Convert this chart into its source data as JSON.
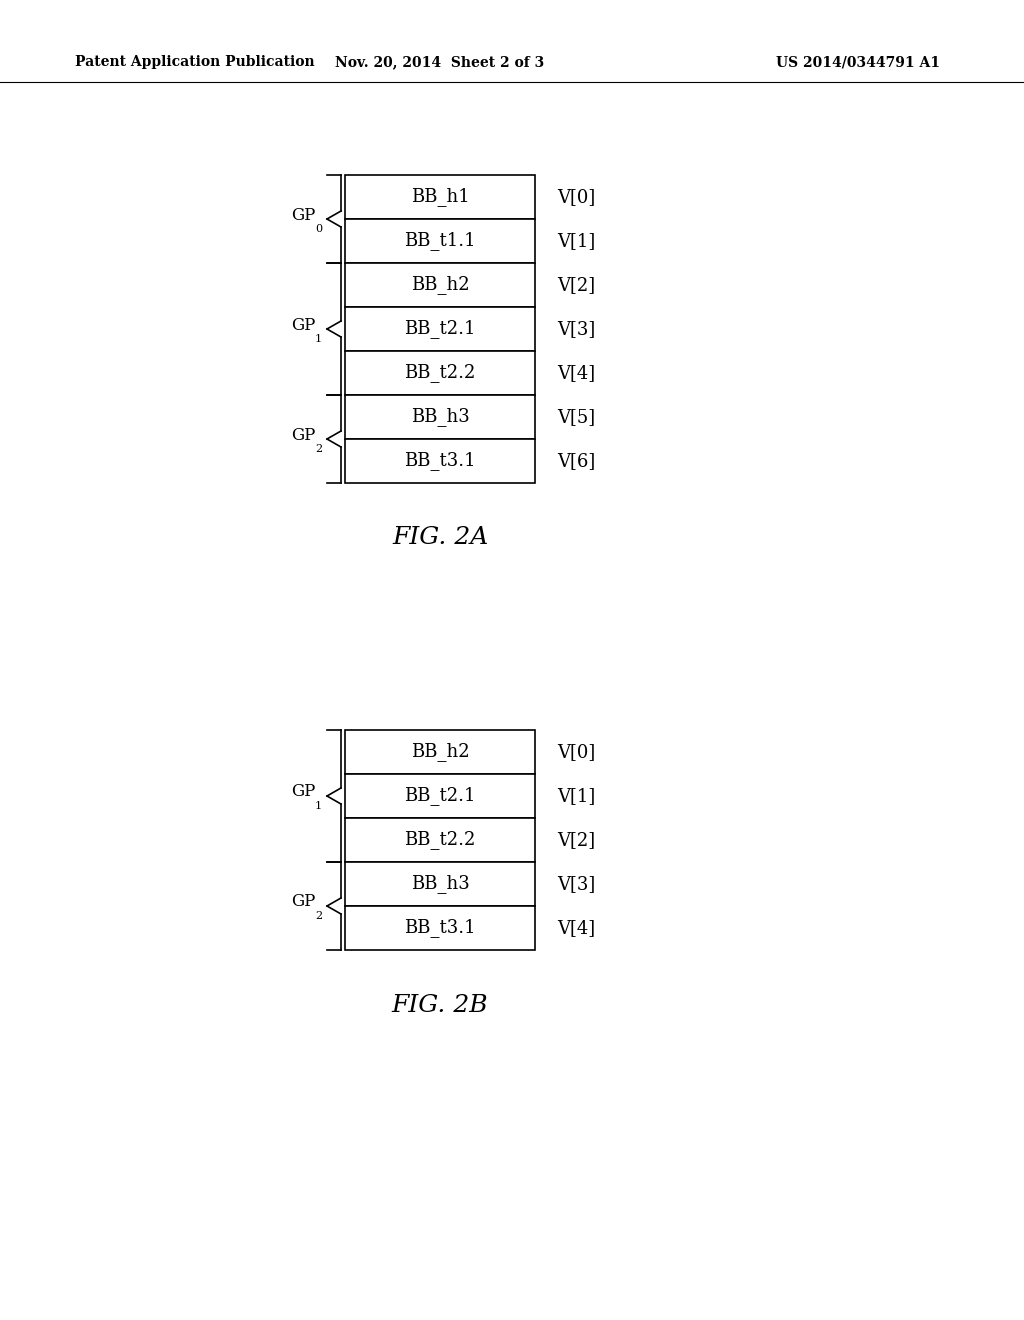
{
  "header_left": "Patent Application Publication",
  "header_mid": "Nov. 20, 2014  Sheet 2 of 3",
  "header_right": "US 2014/0344791 A1",
  "fig_a_label": "FIG. 2A",
  "fig_b_label": "FIG. 2B",
  "fig_a": {
    "rows": [
      "BB_h1",
      "BB_t1.1",
      "BB_h2",
      "BB_t2.1",
      "BB_t2.2",
      "BB_h3",
      "BB_t3.1"
    ],
    "vlabels": [
      "V[0]",
      "V[1]",
      "V[2]",
      "V[3]",
      "V[4]",
      "V[5]",
      "V[6]"
    ],
    "groups": [
      {
        "label": "GP",
        "subscript": "0",
        "rows": [
          0,
          1
        ]
      },
      {
        "label": "GP",
        "subscript": "1",
        "rows": [
          2,
          3,
          4
        ]
      },
      {
        "label": "GP",
        "subscript": "2",
        "rows": [
          5,
          6
        ]
      }
    ]
  },
  "fig_b": {
    "rows": [
      "BB_h2",
      "BB_t2.1",
      "BB_t2.2",
      "BB_h3",
      "BB_t3.1"
    ],
    "vlabels": [
      "V[0]",
      "V[1]",
      "V[2]",
      "V[3]",
      "V[4]"
    ],
    "groups": [
      {
        "label": "GP",
        "subscript": "1",
        "rows": [
          0,
          1,
          2
        ]
      },
      {
        "label": "GP",
        "subscript": "2",
        "rows": [
          3,
          4
        ]
      }
    ]
  },
  "background_color": "#ffffff",
  "box_color": "#ffffff",
  "box_edge_color": "#000000",
  "text_color": "#000000"
}
